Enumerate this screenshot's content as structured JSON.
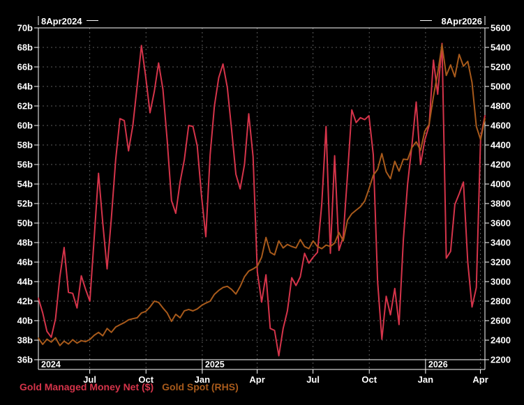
{
  "header": {
    "range_start_label": "8Apr2024",
    "range_end_label": "8Apr2026"
  },
  "legend": [
    {
      "label": "Gold Managed Money Net ($)",
      "color": "#d5344a"
    },
    {
      "label": "Gold Spot (RHS)",
      "color": "#a85a1b"
    }
  ],
  "colors": {
    "background": "#000000",
    "axis": "#ffffff",
    "grid": "#5d5d5d",
    "series_red": "#d5344a",
    "series_orange": "#a85a1b"
  },
  "chart_data": {
    "type": "line",
    "title": "",
    "x_start_label": "8Apr2024",
    "x_end_label": "8Apr2026",
    "left_axis": {
      "min": 36,
      "max": 70,
      "step": 2,
      "labels": [
        "70b",
        "68b",
        "66b",
        "64b",
        "62b",
        "60b",
        "58b",
        "56b",
        "54b",
        "52b",
        "50b",
        "48b",
        "46b",
        "44b",
        "42b",
        "40b",
        "38b",
        "36b"
      ]
    },
    "right_axis": {
      "min": 2200,
      "max": 5600,
      "step": 200,
      "labels": [
        "5600",
        "5400",
        "5200",
        "5000",
        "4800",
        "4600",
        "4400",
        "4200",
        "4000",
        "3800",
        "3600",
        "3400",
        "3200",
        "3000",
        "2800",
        "2600",
        "2400",
        "2200"
      ]
    },
    "x_axis": {
      "month_ticks": [
        {
          "label": "Jul",
          "pos": 0.115
        },
        {
          "label": "Oct",
          "pos": 0.241
        },
        {
          "label": "Jan",
          "pos": 0.367
        },
        {
          "label": "Apr",
          "pos": 0.49
        },
        {
          "label": "Jul",
          "pos": 0.615
        },
        {
          "label": "Oct",
          "pos": 0.741
        },
        {
          "label": "Jan",
          "pos": 0.867
        },
        {
          "label": "Apr",
          "pos": 0.99
        }
      ],
      "year_ticks": [
        {
          "label": "2024",
          "pos": 0.0
        },
        {
          "label": "2025",
          "pos": 0.367
        },
        {
          "label": "2026",
          "pos": 0.867
        }
      ]
    },
    "grid": true,
    "legend_position": "bottom-left",
    "series": [
      {
        "name": "Gold Managed Money Net ($)",
        "axis": "left",
        "color": "#d5344a",
        "unit": "billions USD",
        "values": [
          42.3,
          40.8,
          38.9,
          38.3,
          40.2,
          44.5,
          47.5,
          42.9,
          42.8,
          41.3,
          44.6,
          43.2,
          42.0,
          48.5,
          55.1,
          50.0,
          45.3,
          50.5,
          56.5,
          60.7,
          60.5,
          57.4,
          60.0,
          64.0,
          68.2,
          65.0,
          61.3,
          63.5,
          66.4,
          63.7,
          58.5,
          52.3,
          51.0,
          54.2,
          56.5,
          60.0,
          59.9,
          57.9,
          52.8,
          48.6,
          57.0,
          62.0,
          64.9,
          66.3,
          63.9,
          59.6,
          55.0,
          53.5,
          56.0,
          61.2,
          56.8,
          45.0,
          41.9,
          44.7,
          39.2,
          39.0,
          36.4,
          39.2,
          41.0,
          44.4,
          43.6,
          44.5,
          46.9,
          45.9,
          46.5,
          47.0,
          52.0,
          59.9,
          46.9,
          56.9,
          47.2,
          48.6,
          55.0,
          61.6,
          60.3,
          60.8,
          60.6,
          61.0,
          57.0,
          44.0,
          38.1,
          42.5,
          40.6,
          43.3,
          39.6,
          48.3,
          54.0,
          58.0,
          62.4,
          56.0,
          58.5,
          60.0,
          66.7,
          63.2,
          68.4,
          46.4,
          47.1,
          51.9,
          53.0,
          54.2,
          46.0,
          41.4,
          43.4,
          58.7,
          61.0
        ]
      },
      {
        "name": "Gold Spot (RHS)",
        "axis": "right",
        "color": "#a85a1b",
        "unit": "USD/oz",
        "values": [
          2420,
          2357,
          2410,
          2380,
          2425,
          2345,
          2390,
          2360,
          2405,
          2370,
          2395,
          2385,
          2407,
          2450,
          2480,
          2445,
          2520,
          2480,
          2535,
          2558,
          2580,
          2608,
          2620,
          2629,
          2679,
          2694,
          2740,
          2800,
          2787,
          2730,
          2679,
          2593,
          2665,
          2629,
          2701,
          2715,
          2700,
          2720,
          2755,
          2780,
          2800,
          2870,
          2910,
          2940,
          2952,
          2920,
          2873,
          2950,
          3050,
          3108,
          3130,
          3158,
          3251,
          3453,
          3300,
          3274,
          3417,
          3345,
          3381,
          3360,
          3345,
          3431,
          3359,
          3338,
          3417,
          3359,
          3338,
          3374,
          3360,
          3395,
          3503,
          3417,
          3631,
          3696,
          3732,
          3767,
          3825,
          3950,
          4090,
          4150,
          4312,
          4125,
          4054,
          4233,
          4132,
          4254,
          4250,
          4375,
          4432,
          4346,
          4540,
          4611,
          4898,
          5135,
          5428,
          5113,
          5221,
          5099,
          5328,
          5207,
          5257,
          5041,
          4590,
          4455,
          4670
        ]
      }
    ]
  }
}
